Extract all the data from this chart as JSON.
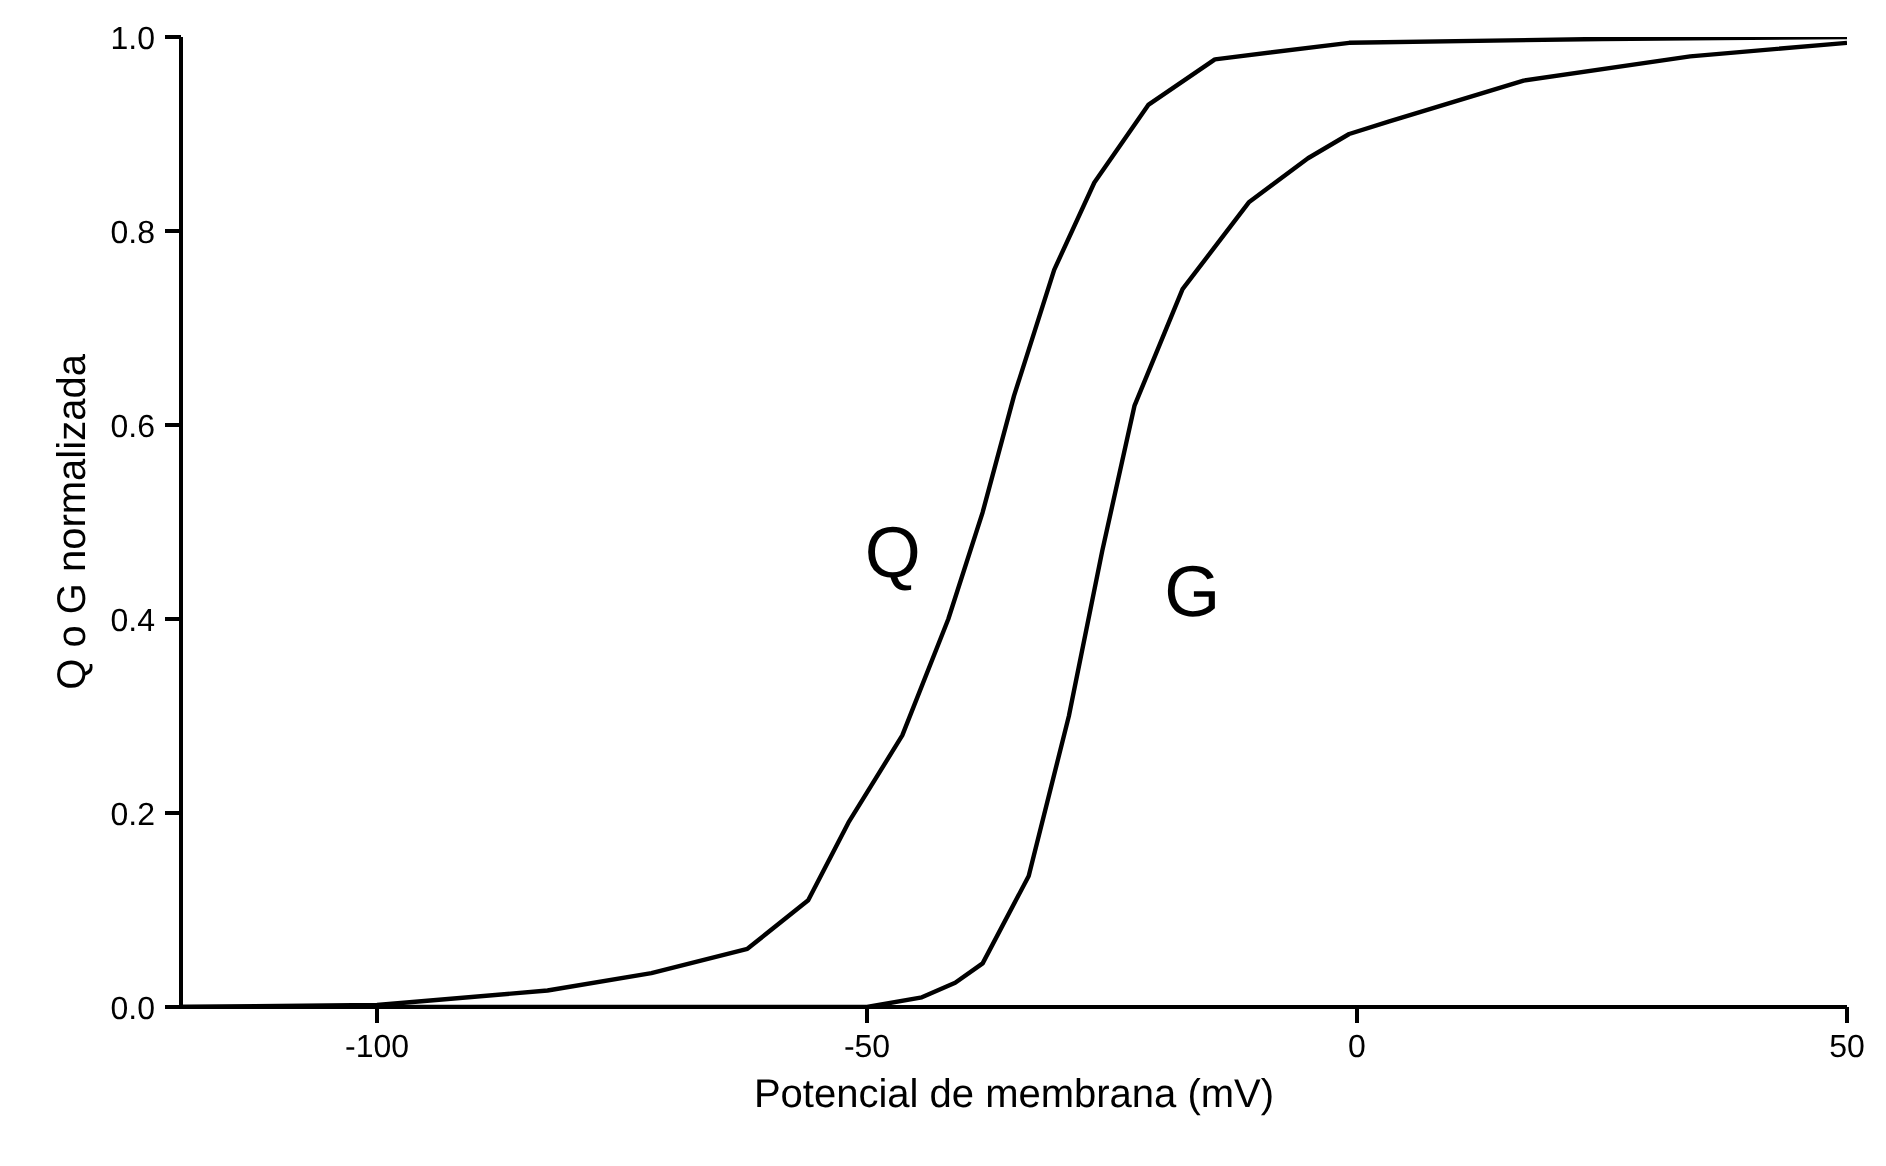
{
  "chart_data": {
    "type": "line",
    "xlabel": "Potencial de membrana (mV)",
    "ylabel": "Q o G normalizada",
    "xlim": [
      -120,
      50
    ],
    "ylim": [
      0,
      1
    ],
    "xticks": [
      -100,
      -50,
      0,
      50
    ],
    "yticks": [
      {
        "value": 0,
        "label": "0.0"
      },
      0.2,
      0.4,
      0.6,
      0.8,
      {
        "value": 1,
        "label": "1.0"
      }
    ],
    "grid": false,
    "marker": "none",
    "line_style": "solid",
    "series": [
      {
        "name": "Q",
        "color": "#000000",
        "x": [
          -120,
          -100,
          -82.6,
          -72,
          -62.2,
          -56,
          -51.9,
          -46.4,
          -41.7,
          -38.2,
          -35.0,
          -30.9,
          -26.8,
          -21.3,
          -14.5,
          -0.8,
          25,
          50
        ],
        "values": [
          0,
          0.002,
          0.017,
          0.035,
          0.06,
          0.11,
          0.19,
          0.28,
          0.4,
          0.51,
          0.63,
          0.76,
          0.85,
          0.93,
          0.977,
          0.994,
          0.998,
          1.0
        ]
      },
      {
        "name": "G",
        "color": "#000000",
        "x": [
          -120,
          -50,
          -44.4,
          -41,
          -38.2,
          -33.5,
          -29.4,
          -26.0,
          -22.7,
          -17.8,
          -11.0,
          -5,
          -0.8,
          3.3,
          17,
          34,
          50
        ],
        "values": [
          0,
          0,
          0.01,
          0.025,
          0.045,
          0.135,
          0.3,
          0.47,
          0.62,
          0.74,
          0.83,
          0.875,
          0.9,
          0.913,
          0.955,
          0.98,
          0.994
        ]
      }
    ]
  }
}
